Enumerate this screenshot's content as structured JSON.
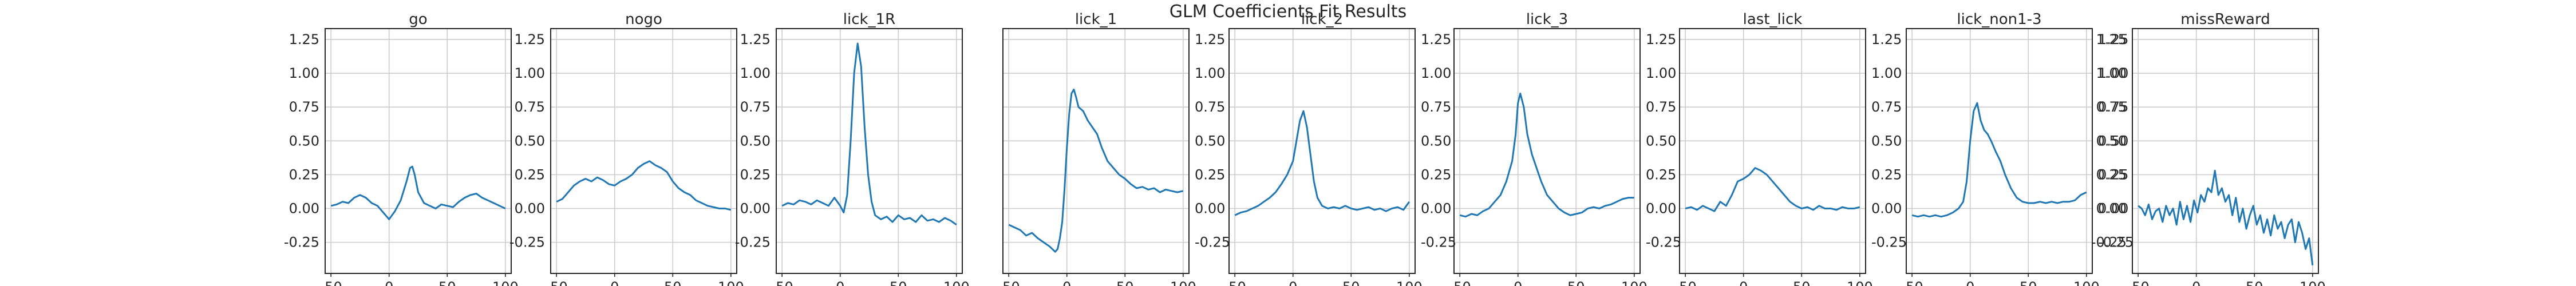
{
  "figure_title": "GLM Coefficients Fit Results",
  "chart_data": [
    {
      "type": "line",
      "title": "go",
      "xlim": [
        -55,
        105
      ],
      "ylim": [
        -0.48,
        1.33
      ],
      "xticks": [
        -50,
        0,
        50,
        100
      ],
      "yticks": [
        -0.25,
        0.0,
        0.25,
        0.5,
        0.75,
        1.0,
        1.25
      ],
      "ytick_side": "left",
      "grid": true,
      "series": [
        {
          "x": [
            -50,
            -45,
            -40,
            -35,
            -30,
            -25,
            -20,
            -15,
            -10,
            -5,
            0,
            5,
            10,
            15,
            18,
            20,
            22,
            25,
            30,
            35,
            40,
            45,
            50,
            55,
            60,
            65,
            70,
            75,
            80,
            85,
            90,
            95,
            100
          ],
          "y": [
            0.02,
            0.03,
            0.05,
            0.04,
            0.08,
            0.1,
            0.08,
            0.04,
            0.02,
            -0.03,
            -0.08,
            -0.02,
            0.06,
            0.2,
            0.3,
            0.31,
            0.25,
            0.12,
            0.04,
            0.02,
            0.0,
            0.03,
            0.02,
            0.01,
            0.05,
            0.08,
            0.1,
            0.11,
            0.08,
            0.06,
            0.04,
            0.02,
            0.0
          ]
        }
      ]
    },
    {
      "type": "line",
      "title": "nogo",
      "xlim": [
        -55,
        105
      ],
      "ylim": [
        -0.48,
        1.33
      ],
      "xticks": [
        -50,
        0,
        50,
        100
      ],
      "yticks": [
        -0.25,
        0.0,
        0.25,
        0.5,
        0.75,
        1.0,
        1.25
      ],
      "ytick_side": "left",
      "grid": true,
      "series": [
        {
          "x": [
            -50,
            -45,
            -40,
            -35,
            -30,
            -25,
            -20,
            -15,
            -10,
            -5,
            0,
            5,
            10,
            15,
            20,
            25,
            30,
            35,
            40,
            45,
            50,
            55,
            60,
            65,
            70,
            75,
            80,
            85,
            90,
            95,
            100
          ],
          "y": [
            0.05,
            0.07,
            0.12,
            0.17,
            0.2,
            0.22,
            0.2,
            0.23,
            0.21,
            0.18,
            0.17,
            0.2,
            0.22,
            0.25,
            0.3,
            0.33,
            0.35,
            0.32,
            0.3,
            0.27,
            0.2,
            0.15,
            0.12,
            0.1,
            0.06,
            0.04,
            0.02,
            0.01,
            0.0,
            0.0,
            -0.01
          ]
        }
      ]
    },
    {
      "type": "line",
      "title": "lick_1R",
      "xlim": [
        -55,
        105
      ],
      "ylim": [
        -0.48,
        1.33
      ],
      "xticks": [
        -50,
        0,
        50,
        100
      ],
      "yticks": [
        -0.25,
        0.0,
        0.25,
        0.5,
        0.75,
        1.0,
        1.25
      ],
      "ytick_side": "left",
      "grid": true,
      "series": [
        {
          "x": [
            -50,
            -45,
            -40,
            -35,
            -30,
            -25,
            -20,
            -15,
            -10,
            -5,
            0,
            3,
            6,
            9,
            12,
            15,
            18,
            21,
            24,
            27,
            30,
            35,
            40,
            45,
            50,
            55,
            60,
            65,
            70,
            75,
            80,
            85,
            90,
            95,
            100
          ],
          "y": [
            0.02,
            0.04,
            0.03,
            0.06,
            0.05,
            0.03,
            0.06,
            0.04,
            0.02,
            0.08,
            0.02,
            -0.03,
            0.1,
            0.5,
            1.0,
            1.22,
            1.05,
            0.6,
            0.25,
            0.05,
            -0.05,
            -0.08,
            -0.06,
            -0.1,
            -0.05,
            -0.08,
            -0.07,
            -0.1,
            -0.05,
            -0.09,
            -0.08,
            -0.1,
            -0.07,
            -0.09,
            -0.12
          ]
        }
      ]
    },
    {
      "type": "line",
      "title": "lick_1",
      "xlim": [
        -55,
        105
      ],
      "ylim": [
        -0.48,
        1.33
      ],
      "xticks": [
        -50,
        0,
        50,
        100
      ],
      "yticks": [
        -0.25,
        0.0,
        0.25,
        0.5,
        0.75,
        1.0,
        1.25
      ],
      "ytick_side": "right",
      "grid": true,
      "series": [
        {
          "x": [
            -50,
            -45,
            -40,
            -35,
            -30,
            -25,
            -20,
            -15,
            -10,
            -8,
            -6,
            -4,
            -2,
            0,
            2,
            4,
            6,
            8,
            10,
            14,
            18,
            22,
            26,
            30,
            35,
            40,
            45,
            50,
            55,
            60,
            65,
            70,
            75,
            80,
            85,
            90,
            95,
            100
          ],
          "y": [
            -0.12,
            -0.14,
            -0.16,
            -0.2,
            -0.18,
            -0.22,
            -0.25,
            -0.28,
            -0.32,
            -0.3,
            -0.22,
            -0.1,
            0.15,
            0.45,
            0.7,
            0.85,
            0.88,
            0.82,
            0.75,
            0.72,
            0.65,
            0.6,
            0.55,
            0.45,
            0.35,
            0.3,
            0.25,
            0.22,
            0.18,
            0.15,
            0.16,
            0.14,
            0.15,
            0.12,
            0.14,
            0.13,
            0.12,
            0.13
          ]
        }
      ]
    },
    {
      "type": "line",
      "title": "lick_2",
      "xlim": [
        -55,
        105
      ],
      "ylim": [
        -0.48,
        1.33
      ],
      "xticks": [
        -50,
        0,
        50,
        100
      ],
      "yticks": [
        -0.25,
        0.0,
        0.25,
        0.5,
        0.75,
        1.0,
        1.25
      ],
      "ytick_side": "right",
      "grid": true,
      "series": [
        {
          "x": [
            -50,
            -45,
            -40,
            -35,
            -30,
            -25,
            -20,
            -15,
            -10,
            -5,
            0,
            3,
            6,
            9,
            12,
            15,
            18,
            21,
            25,
            30,
            35,
            40,
            45,
            50,
            55,
            60,
            65,
            70,
            75,
            80,
            85,
            90,
            95,
            100
          ],
          "y": [
            -0.05,
            -0.03,
            -0.02,
            0.0,
            0.02,
            0.05,
            0.08,
            0.12,
            0.18,
            0.25,
            0.35,
            0.5,
            0.65,
            0.72,
            0.6,
            0.4,
            0.2,
            0.08,
            0.02,
            0.0,
            0.01,
            0.0,
            0.02,
            0.0,
            -0.01,
            0.0,
            0.01,
            -0.01,
            0.0,
            -0.02,
            0.0,
            0.01,
            -0.01,
            0.05
          ]
        }
      ]
    },
    {
      "type": "line",
      "title": "lick_3",
      "xlim": [
        -55,
        105
      ],
      "ylim": [
        -0.48,
        1.33
      ],
      "xticks": [
        -50,
        0,
        50,
        100
      ],
      "yticks": [
        -0.25,
        0.0,
        0.25,
        0.5,
        0.75,
        1.0,
        1.25
      ],
      "ytick_side": "right",
      "grid": true,
      "series": [
        {
          "x": [
            -50,
            -45,
            -40,
            -35,
            -30,
            -25,
            -20,
            -15,
            -10,
            -5,
            -2,
            0,
            2,
            5,
            8,
            12,
            16,
            20,
            25,
            30,
            35,
            40,
            45,
            50,
            55,
            60,
            65,
            70,
            75,
            80,
            85,
            90,
            95,
            100
          ],
          "y": [
            -0.05,
            -0.06,
            -0.04,
            -0.05,
            -0.02,
            0.0,
            0.05,
            0.1,
            0.2,
            0.35,
            0.55,
            0.78,
            0.85,
            0.75,
            0.55,
            0.4,
            0.3,
            0.2,
            0.1,
            0.05,
            0.0,
            -0.03,
            -0.05,
            -0.04,
            -0.03,
            0.0,
            0.01,
            0.0,
            0.02,
            0.03,
            0.05,
            0.07,
            0.08,
            0.08
          ]
        }
      ]
    },
    {
      "type": "line",
      "title": "last_lick",
      "xlim": [
        -55,
        105
      ],
      "ylim": [
        -0.48,
        1.33
      ],
      "xticks": [
        -50,
        0,
        50,
        100
      ],
      "yticks": [
        -0.25,
        0.0,
        0.25,
        0.5,
        0.75,
        1.0,
        1.25
      ],
      "ytick_side": "right",
      "grid": true,
      "series": [
        {
          "x": [
            -50,
            -45,
            -40,
            -35,
            -30,
            -25,
            -20,
            -15,
            -10,
            -5,
            0,
            5,
            10,
            15,
            20,
            25,
            30,
            35,
            40,
            45,
            50,
            55,
            60,
            65,
            70,
            75,
            80,
            85,
            90,
            95,
            100
          ],
          "y": [
            0.0,
            0.01,
            -0.01,
            0.02,
            0.0,
            -0.02,
            0.05,
            0.02,
            0.1,
            0.2,
            0.22,
            0.25,
            0.3,
            0.28,
            0.25,
            0.2,
            0.15,
            0.1,
            0.05,
            0.02,
            0.0,
            0.01,
            -0.01,
            0.02,
            0.0,
            0.0,
            -0.01,
            0.01,
            0.0,
            0.0,
            0.01
          ]
        }
      ]
    },
    {
      "type": "line",
      "title": "lick_non1-3",
      "xlim": [
        -55,
        105
      ],
      "ylim": [
        -0.48,
        1.33
      ],
      "xticks": [
        -50,
        0,
        50,
        100
      ],
      "yticks": [
        -0.25,
        0.0,
        0.25,
        0.5,
        0.75,
        1.0,
        1.25
      ],
      "ytick_side": "right",
      "grid": true,
      "series": [
        {
          "x": [
            -50,
            -45,
            -40,
            -35,
            -30,
            -25,
            -20,
            -15,
            -10,
            -6,
            -3,
            0,
            3,
            6,
            9,
            12,
            15,
            18,
            22,
            26,
            30,
            35,
            40,
            45,
            50,
            55,
            60,
            65,
            70,
            75,
            80,
            85,
            90,
            95,
            100
          ],
          "y": [
            -0.05,
            -0.06,
            -0.05,
            -0.06,
            -0.05,
            -0.06,
            -0.05,
            -0.03,
            0.0,
            0.05,
            0.2,
            0.5,
            0.72,
            0.78,
            0.65,
            0.58,
            0.55,
            0.5,
            0.42,
            0.35,
            0.25,
            0.15,
            0.08,
            0.05,
            0.04,
            0.04,
            0.05,
            0.04,
            0.05,
            0.04,
            0.05,
            0.05,
            0.06,
            0.1,
            0.12
          ]
        }
      ]
    },
    {
      "type": "line",
      "title": "missReward",
      "xlim": [
        -55,
        105
      ],
      "ylim": [
        -0.48,
        1.33
      ],
      "xticks": [
        -50,
        0,
        50,
        100
      ],
      "yticks": [
        -0.25,
        0.0,
        0.25,
        0.5,
        0.75,
        1.0,
        1.25
      ],
      "ytick_side": "left",
      "grid": true,
      "series": [
        {
          "x": [
            -50,
            -47,
            -44,
            -41,
            -38,
            -35,
            -32,
            -29,
            -26,
            -23,
            -20,
            -17,
            -14,
            -11,
            -8,
            -5,
            -2,
            1,
            4,
            7,
            10,
            13,
            16,
            19,
            22,
            25,
            28,
            31,
            34,
            37,
            40,
            43,
            46,
            49,
            52,
            55,
            58,
            61,
            64,
            67,
            70,
            73,
            76,
            79,
            82,
            85,
            88,
            91,
            94,
            97,
            100
          ],
          "y": [
            0.02,
            0.0,
            -0.05,
            0.03,
            -0.08,
            -0.02,
            0.0,
            -0.1,
            0.02,
            -0.05,
            0.0,
            -0.12,
            0.05,
            -0.08,
            0.02,
            -0.1,
            0.06,
            -0.03,
            0.1,
            0.05,
            0.15,
            0.12,
            0.28,
            0.1,
            0.15,
            0.05,
            0.1,
            -0.05,
            0.08,
            -0.1,
            0.0,
            -0.15,
            -0.05,
            0.02,
            -0.12,
            -0.05,
            -0.18,
            -0.08,
            -0.2,
            -0.05,
            -0.15,
            -0.1,
            -0.22,
            -0.12,
            -0.08,
            -0.25,
            -0.1,
            -0.18,
            -0.3,
            -0.22,
            -0.42
          ]
        }
      ]
    }
  ]
}
